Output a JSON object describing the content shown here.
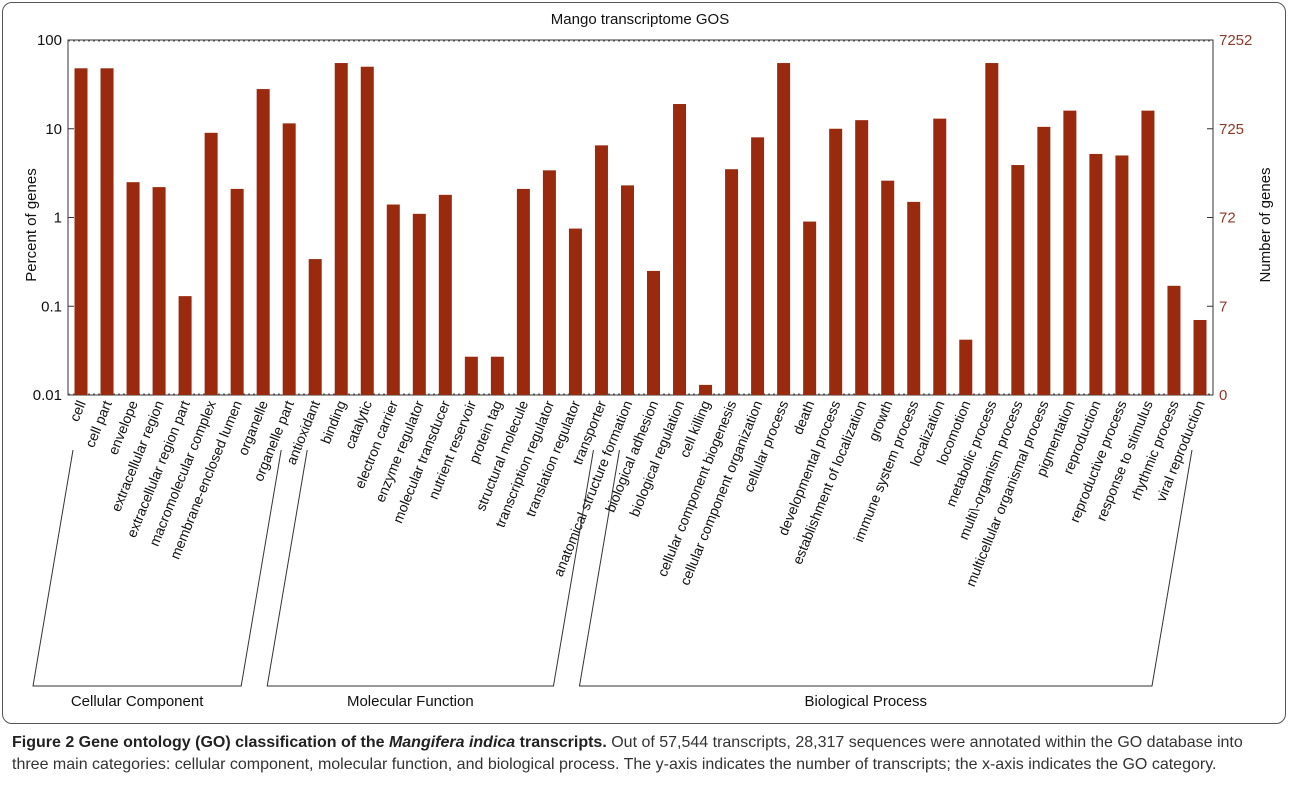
{
  "chart_data": {
    "type": "bar",
    "title": "Mango transcriptome GOS",
    "y_label": "Percent of genes",
    "y2_label": "Number of genes",
    "categories": [
      "cell",
      "cell part",
      "envelope",
      "extracellular region",
      "extracellular region part",
      "macromolecular complex",
      "membrane-enclosed lumen",
      "organelle",
      "organelle part",
      "antioxidant",
      "binding",
      "catalytic",
      "electron carrier",
      "enzyme regulator",
      "molecular transducer",
      "nutrient reservoir",
      "protein tag",
      "structural molecule",
      "transcription regulator",
      "translation regulator",
      "transporter",
      "anatomical structure formation",
      "biological adhesion",
      "biological regulation",
      "cell killing",
      "cellular component biogenesis",
      "cellular component organization",
      "cellular process",
      "death",
      "developmental process",
      "establishment of localization",
      "growth",
      "immune system process",
      "localization",
      "locomotion",
      "metabolic process",
      "multi\\-organism process",
      "multicellular organismal process",
      "pigmentation",
      "reproduction",
      "reproductive process",
      "response to stimulus",
      "rhythmic process",
      "viral reproduction"
    ],
    "values": [
      48,
      48,
      2.5,
      2.2,
      0.13,
      9,
      2.1,
      28,
      11.5,
      0.34,
      55,
      50,
      1.4,
      1.1,
      1.8,
      0.027,
      0.027,
      2.1,
      3.4,
      0.75,
      6.5,
      2.3,
      0.25,
      19,
      0.013,
      3.5,
      8,
      55,
      0.9,
      10,
      12.5,
      2.6,
      1.5,
      13,
      0.042,
      55,
      3.9,
      10.5,
      16,
      5.2,
      5,
      16,
      0.17,
      0.07
    ],
    "color": "#9a2a0e",
    "log_scale": true,
    "ylim": [
      0.01,
      100
    ],
    "yticks": [
      0.01,
      0.1,
      1,
      10,
      100
    ],
    "y2ticks": [
      0,
      7,
      72,
      725,
      7252
    ],
    "y2_color": "#8b3a2a",
    "grid": false,
    "groups": [
      "Cellular Component",
      "Molecular Function",
      "Biological Process"
    ]
  },
  "caption": {
    "label": "Figure 2",
    "title_before": " Gene ontology (GO) classification of the ",
    "title_italic": "Mangifera indica",
    "title_after": " transcripts.",
    "text": " Out of 57,544 transcripts, 28,317 sequences were annotated within the GO database into three main categories: cellular component, molecular function, and biological process. The y-axis indicates the number of transcripts; the x-axis indicates the GO category."
  }
}
